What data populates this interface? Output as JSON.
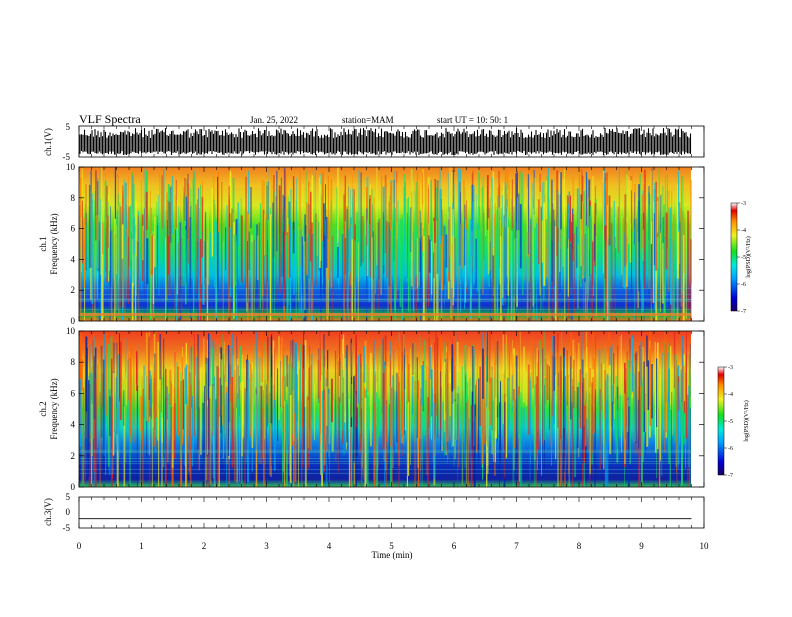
{
  "header": {
    "title": "VLF Spectra",
    "date": "Jan. 25, 2022",
    "station": "station=MAM",
    "start": "start UT =  10: 50: 1"
  },
  "chart_data": [
    {
      "type": "line",
      "panel": "ch1-waveform",
      "ylabel": "ch.1(V)",
      "ylim": [
        -5,
        5
      ],
      "yticks": [
        "5",
        "-5"
      ],
      "xlim": [
        0,
        10
      ],
      "description_series": "dense vertical waveform spikes across the full time range, data ends at 9.8 min"
    },
    {
      "type": "heatmap",
      "panel": "ch1-spectrogram",
      "ylabel_line1": "ch.1",
      "ylabel_line2": "Frequency (kHz)",
      "ylim": [
        0,
        10
      ],
      "yticks": [
        "0",
        "2",
        "4",
        "6",
        "8",
        "10"
      ],
      "xlim": [
        0,
        10
      ],
      "data_end_min": 9.8,
      "colorbar": {
        "label": "log(PSD)(V²/Hz)",
        "range": [
          -7,
          -3
        ],
        "ticks": [
          "-3",
          "-4",
          "-5",
          "-6",
          "-7"
        ]
      }
    },
    {
      "type": "heatmap",
      "panel": "ch2-spectrogram",
      "ylabel_line1": "ch.2",
      "ylabel_line2": "Frequency (kHz)",
      "ylim": [
        0,
        10
      ],
      "yticks": [
        "0",
        "2",
        "4",
        "6",
        "8",
        "10"
      ],
      "xlim": [
        0,
        10
      ],
      "data_end_min": 9.8,
      "colorbar": {
        "label": "log(PSD)(V²/Hz)",
        "range": [
          -7,
          -3
        ],
        "ticks": [
          "-3",
          "-4",
          "-5",
          "-6",
          "-7"
        ]
      }
    },
    {
      "type": "line",
      "panel": "ch3-waveform",
      "ylabel": "ch.3(V)",
      "ylim": [
        -5,
        5
      ],
      "yticks": [
        "5",
        "0",
        "-5"
      ],
      "xlim": [
        0,
        10
      ],
      "series": [
        {
          "x": [
            0,
            9.8
          ],
          "y": [
            -2,
            -2
          ]
        }
      ]
    }
  ],
  "xaxis": {
    "label": "Time (min)",
    "ticks": [
      "0",
      "1",
      "2",
      "3",
      "4",
      "5",
      "6",
      "7",
      "8",
      "9",
      "10"
    ]
  }
}
